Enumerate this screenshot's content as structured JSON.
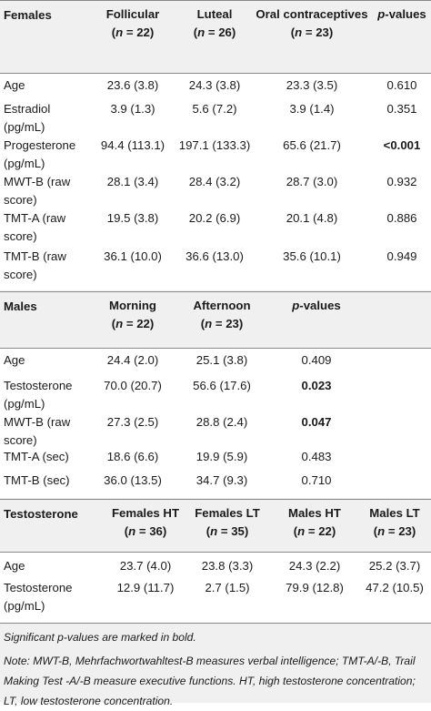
{
  "sections": [
    {
      "name": "females",
      "header": {
        "label": "Females",
        "cols": [
          {
            "label": "Follicular",
            "n": "22"
          },
          {
            "label": "Luteal",
            "n": "26"
          },
          {
            "label": "Oral contraceptives",
            "n": "23"
          },
          {
            "label": "p-values",
            "n": ""
          }
        ]
      },
      "rows": [
        {
          "label": "Age",
          "values": [
            "23.6 (3.8)",
            "24.3 (3.8)",
            "23.3 (3.5)",
            "0.610"
          ],
          "bold": [
            false,
            false,
            false,
            false
          ]
        },
        {
          "label": "Estradiol (pg/mL)",
          "values": [
            "3.9 (1.3)",
            "5.6 (7.2)",
            "3.9 (1.4)",
            "0.351"
          ],
          "bold": [
            false,
            false,
            false,
            false
          ]
        },
        {
          "label": "Progesterone (pg/mL)",
          "values": [
            "94.4 (113.1)",
            "197.1 (133.3)",
            "65.6 (21.7)",
            "<0.001"
          ],
          "bold": [
            false,
            false,
            false,
            true
          ]
        },
        {
          "label": "MWT-B (raw score)",
          "values": [
            "28.1 (3.4)",
            "28.4 (3.2)",
            "28.7 (3.0)",
            "0.932"
          ],
          "bold": [
            false,
            false,
            false,
            false
          ]
        },
        {
          "label": "TMT-A (raw score)",
          "values": [
            "19.5 (3.8)",
            "20.2 (6.9)",
            "20.1 (4.8)",
            "0.886"
          ],
          "bold": [
            false,
            false,
            false,
            false
          ]
        },
        {
          "label": "TMT-B (raw score)",
          "values": [
            "36.1 (10.0)",
            "36.6 (13.0)",
            "35.6 (10.1)",
            "0.949"
          ],
          "bold": [
            false,
            false,
            false,
            false
          ]
        }
      ]
    },
    {
      "name": "males",
      "header": {
        "label": "Males",
        "cols": [
          {
            "label": "Morning",
            "n": "22"
          },
          {
            "label": "Afternoon",
            "n": "23"
          },
          {
            "label": "p-values",
            "n": ""
          }
        ]
      },
      "rows": [
        {
          "label": "Age",
          "values": [
            "24.4 (2.0)",
            "25.1 (3.8)",
            "0.409"
          ],
          "bold": [
            false,
            false,
            false
          ]
        },
        {
          "label": "Testosterone (pg/mL)",
          "values": [
            "70.0 (20.7)",
            "56.6 (17.6)",
            "0.023"
          ],
          "bold": [
            false,
            false,
            true
          ]
        },
        {
          "label": "MWT-B (raw score)",
          "values": [
            "27.3 (2.5)",
            "28.8 (2.4)",
            "0.047"
          ],
          "bold": [
            false,
            false,
            true
          ]
        },
        {
          "label": "TMT-A (sec)",
          "values": [
            "18.6 (6.6)",
            "19.9 (5.9)",
            "0.483"
          ],
          "bold": [
            false,
            false,
            false
          ]
        },
        {
          "label": "TMT-B (sec)",
          "values": [
            "36.0 (13.5)",
            "34.7 (9.3)",
            "0.710"
          ],
          "bold": [
            false,
            false,
            false
          ]
        }
      ]
    },
    {
      "name": "testosterone",
      "header": {
        "label": "Testosterone",
        "cols": [
          {
            "label": "Females HT",
            "n": "36"
          },
          {
            "label": "Females LT",
            "n": "35"
          },
          {
            "label": "Males HT",
            "n": "22"
          },
          {
            "label": "Males LT",
            "n": "23"
          }
        ]
      },
      "rows": [
        {
          "label": "Age",
          "values": [
            "23.7 (4.0)",
            "23.8 (3.3)",
            "24.3 (2.2)",
            "25.2 (3.7)"
          ],
          "bold": [
            false,
            false,
            false,
            false
          ]
        },
        {
          "label": "Testosterone (pg/mL)",
          "values": [
            "12.9 (11.7)",
            "2.7 (1.5)",
            "79.9 (12.8)",
            "47.2 (10.5)"
          ],
          "bold": [
            false,
            false,
            false,
            false
          ]
        }
      ]
    }
  ],
  "footnotes": [
    "Significant p-values are marked in bold.",
    "Note: MWT-B, Mehrfachwortwahltest-B measures verbal intelligence; TMT-A/-B, Trail Making Test -A/-B measure executive functions. HT, high testosterone concentration; LT, low testosterone concentration."
  ],
  "colors": {
    "header_bg": "#f0f0f0",
    "body_bg": "#ffffff",
    "rule": "#8a8a8a"
  }
}
